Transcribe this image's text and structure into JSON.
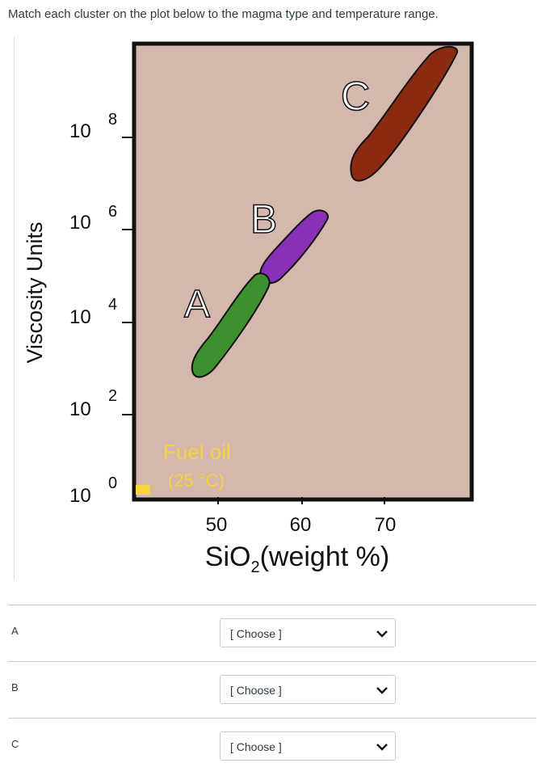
{
  "question": {
    "prompt": "Match each cluster on the plot below to the magma type and temperature range."
  },
  "plot": {
    "y_axis_title": "Viscosity Units",
    "y_ticks": [
      {
        "base": "10",
        "exp": "8"
      },
      {
        "base": "10",
        "exp": "6"
      },
      {
        "base": "10",
        "exp": "4"
      },
      {
        "base": "10",
        "exp": "2"
      },
      {
        "base": "10",
        "exp": "0"
      }
    ],
    "x_ticks": [
      "50",
      "60",
      "70"
    ],
    "x_axis_title": {
      "pre": "SiO",
      "sub": "2",
      "post": "(weight %)"
    },
    "cluster_labels": {
      "a": "A",
      "b": "B",
      "c": "C"
    },
    "fuel_oil": {
      "line1": "Fuel oil",
      "line2": "(25 °C)"
    },
    "colors": {
      "background": "#d4b8ae",
      "cluster_a": "#3e8f2d",
      "cluster_b": "#8a2fb7",
      "cluster_c": "#8a2b11",
      "fuel_oil": "#f6d43a"
    }
  },
  "matches": [
    {
      "label": "A",
      "select": "[ Choose ]"
    },
    {
      "label": "B",
      "select": "[ Choose ]"
    },
    {
      "label": "C",
      "select": "[ Choose ]"
    }
  ]
}
